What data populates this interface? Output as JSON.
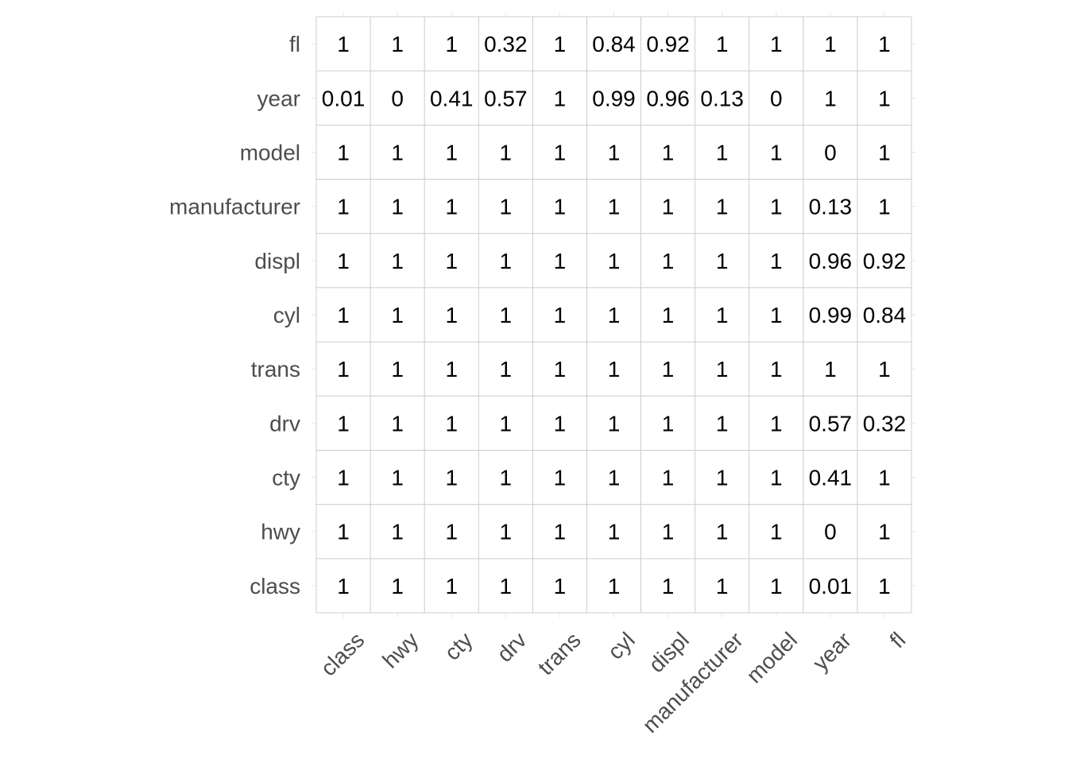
{
  "chart_data": {
    "type": "heatmap",
    "title": "",
    "xlabel": "",
    "ylabel": "",
    "x_categories": [
      "class",
      "hwy",
      "cty",
      "drv",
      "trans",
      "cyl",
      "displ",
      "manufacturer",
      "model",
      "year",
      "fl"
    ],
    "y_categories": [
      "fl",
      "year",
      "model",
      "manufacturer",
      "displ",
      "cyl",
      "trans",
      "drv",
      "cty",
      "hwy",
      "class"
    ],
    "values": [
      [
        "1",
        "1",
        "1",
        "0.32",
        "1",
        "0.84",
        "0.92",
        "1",
        "1",
        "1",
        "1"
      ],
      [
        "0.01",
        "0",
        "0.41",
        "0.57",
        "1",
        "0.99",
        "0.96",
        "0.13",
        "0",
        "1",
        "1"
      ],
      [
        "1",
        "1",
        "1",
        "1",
        "1",
        "1",
        "1",
        "1",
        "1",
        "0",
        "1"
      ],
      [
        "1",
        "1",
        "1",
        "1",
        "1",
        "1",
        "1",
        "1",
        "1",
        "0.13",
        "1"
      ],
      [
        "1",
        "1",
        "1",
        "1",
        "1",
        "1",
        "1",
        "1",
        "1",
        "0.96",
        "0.92"
      ],
      [
        "1",
        "1",
        "1",
        "1",
        "1",
        "1",
        "1",
        "1",
        "1",
        "0.99",
        "0.84"
      ],
      [
        "1",
        "1",
        "1",
        "1",
        "1",
        "1",
        "1",
        "1",
        "1",
        "1",
        "1"
      ],
      [
        "1",
        "1",
        "1",
        "1",
        "1",
        "1",
        "1",
        "1",
        "1",
        "0.57",
        "0.32"
      ],
      [
        "1",
        "1",
        "1",
        "1",
        "1",
        "1",
        "1",
        "1",
        "1",
        "0.41",
        "1"
      ],
      [
        "1",
        "1",
        "1",
        "1",
        "1",
        "1",
        "1",
        "1",
        "1",
        "0",
        "1"
      ],
      [
        "1",
        "1",
        "1",
        "1",
        "1",
        "1",
        "1",
        "1",
        "1",
        "0.01",
        "1"
      ]
    ],
    "grid": true,
    "x_tick_label_rotation_deg": -45,
    "colors": {
      "grid": "#cccccc",
      "cell_text": "#000000",
      "axis_text": "#4d4d4d",
      "background": "#ffffff"
    }
  }
}
